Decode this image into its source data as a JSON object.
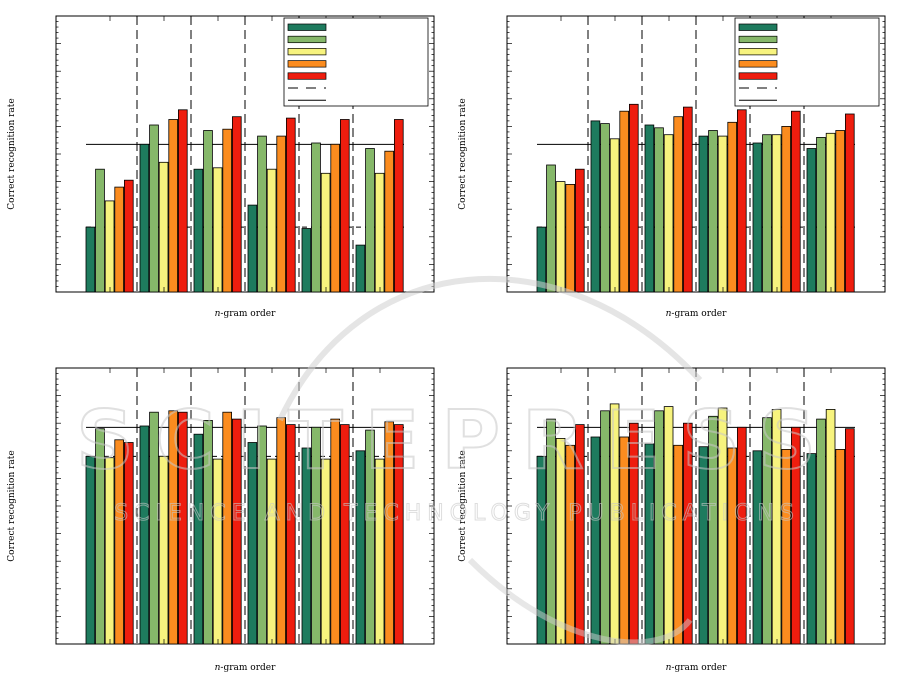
{
  "colors": {
    "series": [
      "#1e7b5e",
      "#86b86a",
      "#f7f37e",
      "#fb8c1f",
      "#ee1d0e"
    ],
    "line": "#000000"
  },
  "watermark": {
    "title": "SCITEPRESS",
    "subtitle": "SCIENCE AND TECHNOLOGY PUBLICATIONS"
  },
  "chart_data": [
    {
      "type": "bar",
      "title": "",
      "xlabel_italic": "n",
      "xlabel": "-gram order",
      "ylabel": "Correct recognition rate",
      "ylim": [
        0,
        100
      ],
      "legend": "top-right",
      "legend_entries": [
        "",
        "",
        "",
        "",
        "",
        "",
        ""
      ],
      "reference_lines": [
        {
          "style": "dashed",
          "value": 23.5
        },
        {
          "style": "solid",
          "value": 53.5
        }
      ],
      "categories": [
        "",
        "",
        "",
        "",
        "",
        ""
      ],
      "series": [
        {
          "name": "",
          "values": [
            23.5,
            53.5,
            44.5,
            31.5,
            23.0,
            17.0
          ]
        },
        {
          "name": "",
          "values": [
            44.5,
            60.5,
            58.5,
            56.5,
            54.0,
            52.0
          ]
        },
        {
          "name": "",
          "values": [
            33.0,
            47.0,
            45.0,
            44.5,
            43.0,
            43.0
          ]
        },
        {
          "name": "",
          "values": [
            38.0,
            62.5,
            59.0,
            56.5,
            53.5,
            51.0
          ]
        },
        {
          "name": "",
          "values": [
            40.5,
            66.0,
            63.5,
            63.0,
            62.5,
            62.5
          ]
        }
      ]
    },
    {
      "type": "bar",
      "title": "",
      "xlabel_italic": "n",
      "xlabel": "-gram order",
      "ylabel": "Correct recognition rate",
      "ylim": [
        0,
        100
      ],
      "legend": "top-right",
      "legend_entries": [
        "",
        "",
        "",
        "",
        "",
        "",
        ""
      ],
      "reference_lines": [
        {
          "style": "dashed",
          "value": 23.5
        },
        {
          "style": "solid",
          "value": 53.5
        }
      ],
      "categories": [
        "",
        "",
        "",
        "",
        "",
        ""
      ],
      "series": [
        {
          "name": "",
          "values": [
            23.5,
            62.0,
            60.5,
            56.5,
            54.0,
            52.0
          ]
        },
        {
          "name": "",
          "values": [
            46.0,
            61.0,
            59.5,
            58.5,
            57.0,
            56.0
          ]
        },
        {
          "name": "",
          "values": [
            40.0,
            55.5,
            57.0,
            56.5,
            57.0,
            57.5
          ]
        },
        {
          "name": "",
          "values": [
            39.0,
            65.5,
            63.5,
            61.5,
            60.0,
            58.5
          ]
        },
        {
          "name": "",
          "values": [
            44.5,
            68.0,
            67.0,
            66.0,
            65.5,
            64.5
          ]
        }
      ]
    },
    {
      "type": "bar",
      "title": "",
      "xlabel_italic": "n",
      "xlabel": "-gram order",
      "ylabel": "Correct recognition rate",
      "ylim": [
        0,
        100
      ],
      "legend": "none",
      "legend_entries": [],
      "reference_lines": [
        {
          "style": "dashed",
          "value": 68.0
        },
        {
          "style": "solid",
          "value": 78.5
        }
      ],
      "categories": [
        "",
        "",
        "",
        "",
        "",
        ""
      ],
      "series": [
        {
          "name": "",
          "values": [
            68.0,
            79.0,
            76.0,
            73.0,
            71.0,
            70.0
          ]
        },
        {
          "name": "",
          "values": [
            78.0,
            84.0,
            81.0,
            79.0,
            78.5,
            77.5
          ]
        },
        {
          "name": "",
          "values": [
            67.5,
            68.0,
            67.0,
            67.0,
            67.0,
            67.0
          ]
        },
        {
          "name": "",
          "values": [
            74.0,
            84.5,
            84.0,
            82.0,
            81.5,
            80.5
          ]
        },
        {
          "name": "",
          "values": [
            73.0,
            84.0,
            81.5,
            79.5,
            79.5,
            79.5
          ]
        }
      ]
    },
    {
      "type": "bar",
      "title": "",
      "xlabel_italic": "n",
      "xlabel": "-gram order",
      "ylabel": "Correct recognition rate",
      "ylim": [
        0,
        100
      ],
      "legend": "none",
      "legend_entries": [],
      "reference_lines": [
        {
          "style": "dashed",
          "value": 68.0
        },
        {
          "style": "solid",
          "value": 78.5
        }
      ],
      "categories": [
        "",
        "",
        "",
        "",
        "",
        ""
      ],
      "series": [
        {
          "name": "",
          "values": [
            68.0,
            75.0,
            72.5,
            71.5,
            70.0,
            69.0
          ]
        },
        {
          "name": "",
          "values": [
            81.5,
            84.5,
            84.5,
            82.5,
            82.0,
            81.5
          ]
        },
        {
          "name": "",
          "values": [
            74.5,
            87.0,
            86.0,
            85.5,
            85.0,
            85.0
          ]
        },
        {
          "name": "",
          "values": [
            72.0,
            75.0,
            72.0,
            71.0,
            70.5,
            70.5
          ]
        },
        {
          "name": "",
          "values": [
            79.5,
            80.0,
            80.0,
            78.5,
            78.5,
            78.0
          ]
        }
      ]
    }
  ]
}
